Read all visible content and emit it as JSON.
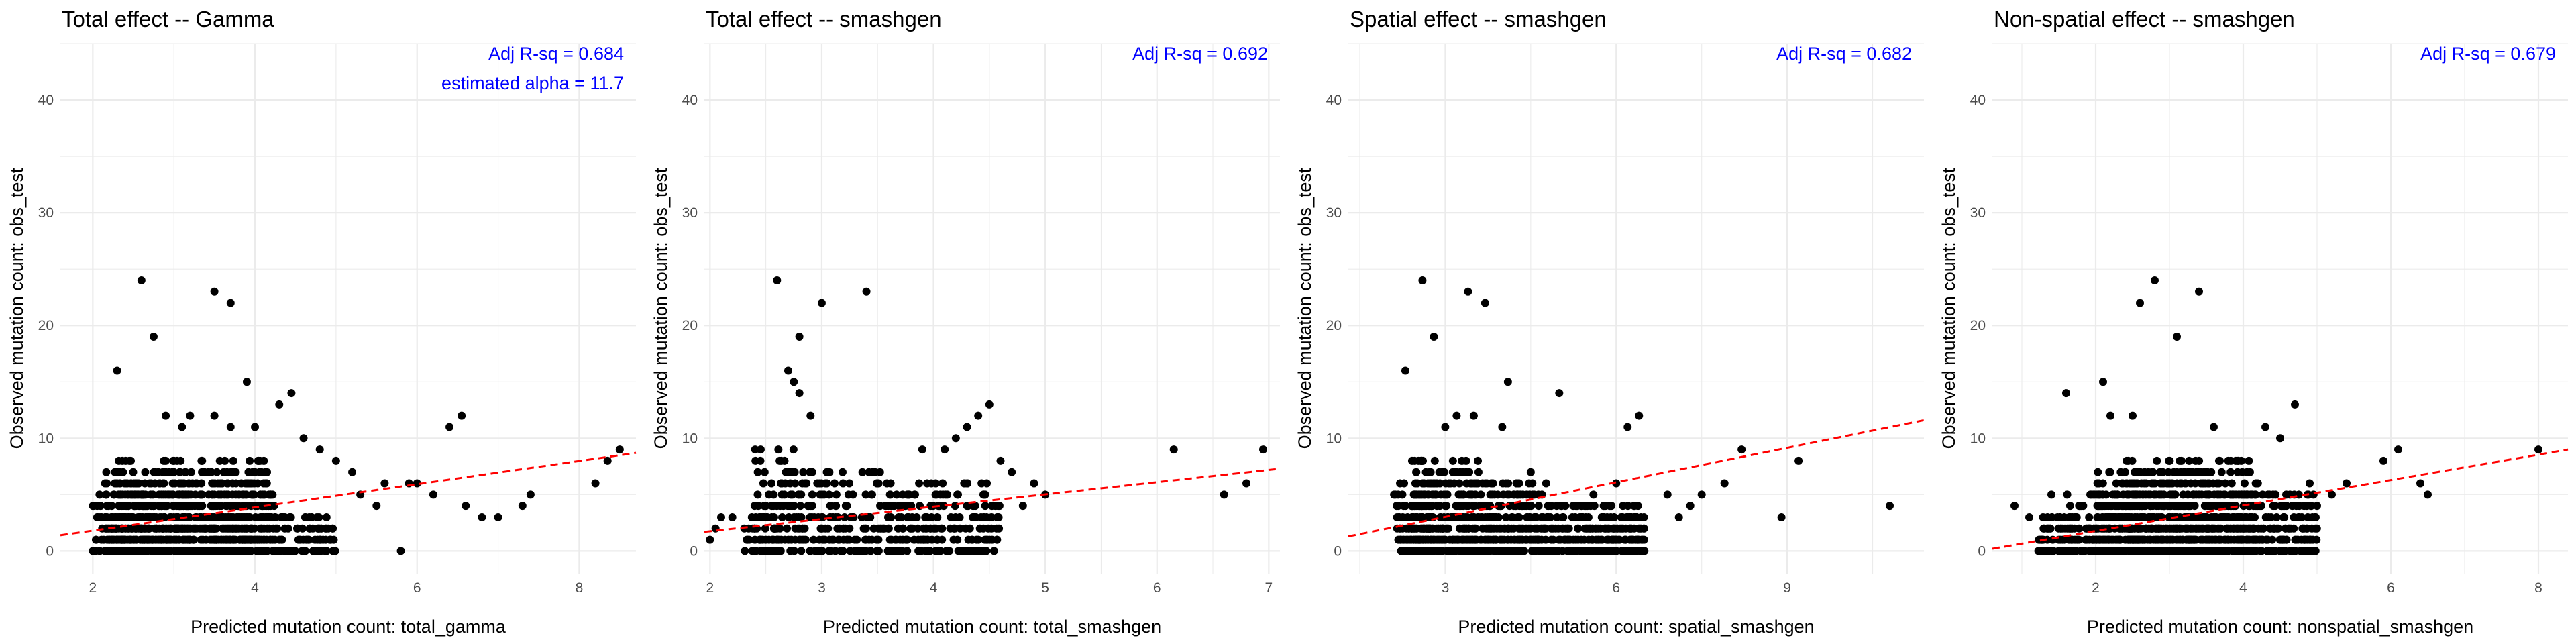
{
  "figure": {
    "background": "#ffffff",
    "point_color": "#000000",
    "fit_color": "#ff0000",
    "annotation_color": "#0000ff",
    "grid_color": "#ebebeb"
  },
  "chart_data": [
    {
      "type": "scatter",
      "title": "Total effect -- Gamma",
      "xlabel": "Predicted mutation count: total_gamma",
      "ylabel": "Observed mutation count: obs_test",
      "annotations": [
        "Adj R-sq = 0.684",
        "estimated alpha = 11.7"
      ],
      "xlim": [
        1.6,
        8.7
      ],
      "ylim": [
        -2,
        45
      ],
      "xticks": [
        2,
        4,
        6,
        8
      ],
      "yticks": [
        0,
        10,
        20,
        30,
        40
      ],
      "fit_line": [
        [
          1.6,
          1.4
        ],
        [
          8.7,
          8.7
        ]
      ],
      "cloud": [
        [
          2.0,
          2.7,
          0,
          5
        ],
        [
          2.15,
          3.2,
          0,
          7
        ],
        [
          2.3,
          4.2,
          0,
          8
        ],
        [
          3.0,
          4.3,
          0,
          6
        ],
        [
          4.3,
          5.0,
          0,
          3
        ]
      ],
      "points": [
        [
          2.6,
          24
        ],
        [
          3.5,
          23
        ],
        [
          3.7,
          22
        ],
        [
          2.75,
          19
        ],
        [
          2.3,
          16
        ],
        [
          3.9,
          15
        ],
        [
          4.45,
          14
        ],
        [
          4.3,
          13
        ],
        [
          2.9,
          12
        ],
        [
          3.2,
          12
        ],
        [
          3.5,
          12
        ],
        [
          6.55,
          12
        ],
        [
          6.4,
          11
        ],
        [
          3.1,
          11
        ],
        [
          3.7,
          11
        ],
        [
          4.0,
          11
        ],
        [
          4.6,
          10
        ],
        [
          4.8,
          9
        ],
        [
          5.0,
          8
        ],
        [
          5.2,
          7
        ],
        [
          5.6,
          6
        ],
        [
          5.9,
          6
        ],
        [
          6.6,
          4
        ],
        [
          6.8,
          3
        ],
        [
          7.0,
          3
        ],
        [
          7.3,
          4
        ],
        [
          7.4,
          5
        ],
        [
          8.2,
          6
        ],
        [
          8.35,
          8
        ],
        [
          8.5,
          9
        ],
        [
          5.5,
          4
        ],
        [
          5.8,
          0
        ],
        [
          6.0,
          6
        ],
        [
          6.2,
          5
        ],
        [
          4.7,
          3
        ],
        [
          5.3,
          5
        ]
      ]
    },
    {
      "type": "scatter",
      "title": "Total effect -- smashgen",
      "xlabel": "Predicted mutation count: total_smashgen",
      "ylabel": "Observed mutation count: obs_test",
      "annotations": [
        "Adj R-sq = 0.692"
      ],
      "xlim": [
        1.95,
        7.1
      ],
      "ylim": [
        -2,
        45
      ],
      "xticks": [
        2,
        3,
        4,
        5,
        6,
        7
      ],
      "yticks": [
        0,
        10,
        20,
        30,
        40
      ],
      "fit_line": [
        [
          1.95,
          1.7
        ],
        [
          7.1,
          7.3
        ]
      ],
      "cloud": [
        [
          2.3,
          2.5,
          0,
          4
        ],
        [
          2.4,
          2.8,
          0,
          9
        ],
        [
          2.8,
          3.8,
          0,
          7
        ],
        [
          3.8,
          4.6,
          0,
          6
        ]
      ],
      "points": [
        [
          2.6,
          24
        ],
        [
          3.4,
          23
        ],
        [
          3.0,
          22
        ],
        [
          2.8,
          19
        ],
        [
          2.7,
          16
        ],
        [
          2.75,
          15
        ],
        [
          2.8,
          14
        ],
        [
          4.5,
          13
        ],
        [
          4.4,
          12
        ],
        [
          4.3,
          11
        ],
        [
          2.9,
          12
        ],
        [
          4.2,
          10
        ],
        [
          3.9,
          9
        ],
        [
          4.1,
          9
        ],
        [
          4.6,
          8
        ],
        [
          4.7,
          7
        ],
        [
          4.9,
          6
        ],
        [
          6.15,
          9
        ],
        [
          6.95,
          9
        ],
        [
          6.6,
          5
        ],
        [
          6.8,
          6
        ],
        [
          2.05,
          2
        ],
        [
          2.1,
          3
        ],
        [
          2.2,
          3
        ],
        [
          2.0,
          1
        ],
        [
          5.0,
          5
        ],
        [
          4.8,
          4
        ]
      ]
    },
    {
      "type": "scatter",
      "title": "Spatial effect -- smashgen",
      "xlabel": "Predicted mutation count: spatial_smashgen",
      "ylabel": "Observed mutation count: obs_test",
      "annotations": [
        "Adj R-sq = 0.682"
      ],
      "xlim": [
        1.3,
        11.4
      ],
      "ylim": [
        -2,
        45
      ],
      "xticks": [
        3,
        6,
        9
      ],
      "yticks": [
        0,
        10,
        20,
        30,
        40
      ],
      "fit_line": [
        [
          1.3,
          1.3
        ],
        [
          11.4,
          11.6
        ]
      ],
      "cloud": [
        [
          2.1,
          2.8,
          0,
          6
        ],
        [
          2.4,
          3.6,
          0,
          8
        ],
        [
          3.6,
          4.8,
          0,
          6
        ],
        [
          4.8,
          6.5,
          0,
          4
        ]
      ],
      "points": [
        [
          2.6,
          24
        ],
        [
          3.4,
          23
        ],
        [
          3.7,
          22
        ],
        [
          2.8,
          19
        ],
        [
          2.3,
          16
        ],
        [
          4.1,
          15
        ],
        [
          5.0,
          14
        ],
        [
          3.2,
          12
        ],
        [
          3.5,
          12
        ],
        [
          3.0,
          11
        ],
        [
          4.0,
          11
        ],
        [
          6.2,
          11
        ],
        [
          6.4,
          12
        ],
        [
          8.2,
          9
        ],
        [
          9.2,
          8
        ],
        [
          7.9,
          6
        ],
        [
          6.9,
          5
        ],
        [
          7.3,
          4
        ],
        [
          7.5,
          5
        ],
        [
          8.9,
          3
        ],
        [
          10.8,
          4
        ],
        [
          6.0,
          6
        ],
        [
          5.6,
          5
        ],
        [
          7.1,
          3
        ],
        [
          5.8,
          2
        ],
        [
          4.5,
          7
        ]
      ]
    },
    {
      "type": "scatter",
      "title": "Non-spatial effect -- smashgen",
      "xlabel": "Predicted mutation count: nonspatial_smashgen",
      "ylabel": "Observed mutation count: obs_test",
      "annotations": [
        "Adj R-sq = 0.679"
      ],
      "xlim": [
        0.6,
        8.4
      ],
      "ylim": [
        -2,
        45
      ],
      "xticks": [
        2,
        4,
        6,
        8
      ],
      "yticks": [
        0,
        10,
        20,
        30,
        40
      ],
      "fit_line": [
        [
          0.6,
          0.2
        ],
        [
          8.4,
          9.0
        ]
      ],
      "cloud": [
        [
          1.6,
          2.6,
          0,
          5
        ],
        [
          2.0,
          3.6,
          0,
          7
        ],
        [
          2.4,
          4.2,
          0,
          8
        ],
        [
          3.6,
          5.0,
          0,
          5
        ],
        [
          1.2,
          1.6,
          0,
          3
        ]
      ],
      "points": [
        [
          2.8,
          24
        ],
        [
          3.4,
          23
        ],
        [
          2.6,
          22
        ],
        [
          3.1,
          19
        ],
        [
          2.1,
          15
        ],
        [
          1.6,
          14
        ],
        [
          2.2,
          12
        ],
        [
          4.7,
          13
        ],
        [
          4.3,
          11
        ],
        [
          4.5,
          10
        ],
        [
          2.5,
          12
        ],
        [
          3.6,
          11
        ],
        [
          6.1,
          9
        ],
        [
          5.4,
          6
        ],
        [
          5.9,
          8
        ],
        [
          6.4,
          6
        ],
        [
          6.5,
          5
        ],
        [
          8.0,
          9
        ],
        [
          5.2,
          5
        ],
        [
          4.9,
          6
        ],
        [
          0.9,
          4
        ],
        [
          1.1,
          3
        ],
        [
          1.3,
          2
        ],
        [
          1.4,
          5
        ],
        [
          1.5,
          1
        ],
        [
          5.0,
          4
        ]
      ]
    }
  ]
}
